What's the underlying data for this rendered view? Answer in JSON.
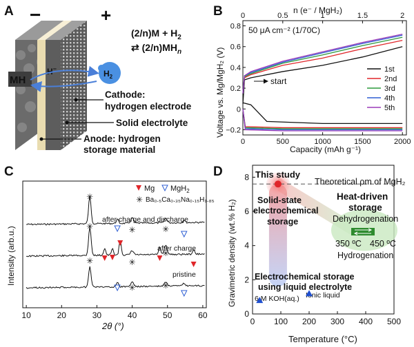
{
  "panels": {
    "A": {
      "letter": "A",
      "minus": "−",
      "plus": "+",
      "reaction_line1": "(2/n)M + H",
      "reaction_line1_sub": "2",
      "reaction_line2": "⇄ (2/n)MH",
      "reaction_line2_sub": "n",
      "mh_label": "MH",
      "h_minus": "H",
      "h_minus_sup": "−",
      "h2_label": "H",
      "h2_sub": "2",
      "cathode_line1": "Cathode:",
      "cathode_line2": "hydrogen electrode",
      "electrolyte": "Solid electrolyte",
      "anode_line1": "Anode: hydrogen",
      "anode_line2": "storage material"
    },
    "B": {
      "letter": "B",
      "top_axis_label": "n (e⁻ / MgH₂)",
      "top_ticks": [
        "0",
        "0.5",
        "1",
        "1.5",
        "2"
      ],
      "y_axis_label": "Voltage vs. Mg/MgH₂ (V)",
      "y_ticks": [
        "−0.2",
        "0",
        "0.2",
        "0.4",
        "0.6",
        "0.8"
      ],
      "x_axis_label": "Capacity (mAh g⁻¹)",
      "x_ticks": [
        "0",
        "500",
        "1000",
        "1500",
        "2000"
      ],
      "condition": "50 μA cm⁻² (1/70C)",
      "start_label": "start",
      "legend": [
        {
          "label": "1st",
          "color": "#111111"
        },
        {
          "label": "2nd",
          "color": "#e0262a"
        },
        {
          "label": "3rd",
          "color": "#2c9a3c"
        },
        {
          "label": "4th",
          "color": "#2f5fd3"
        },
        {
          "label": "5th",
          "color": "#9b3ab8"
        }
      ]
    },
    "C": {
      "letter": "C",
      "y_axis_label": "Intensity (arb.u.)",
      "x_axis_label": "2θ (°)",
      "x_ticks": [
        "10",
        "20",
        "30",
        "40",
        "50",
        "60"
      ],
      "legend_mg": "Mg",
      "legend_mgh2": "MgH",
      "legend_mgh2_sub": "2",
      "legend_ba": "Ba₀.₅Ca₀.₃₅Na₀.₁₅H₁.₈₅",
      "trace_labels": [
        "after charge and discharge",
        "after charge",
        "pristine"
      ],
      "colors": {
        "mg": "#e0262a",
        "mgh2": "#2f5fd3"
      }
    },
    "D": {
      "letter": "D",
      "y_axis_label": "Gravimetric density (wt.% H₂)",
      "x_axis_label": "Temperature (°C)",
      "y_ticks": [
        "0",
        "2",
        "4",
        "6",
        "8"
      ],
      "x_ticks": [
        "0",
        "100",
        "200",
        "300",
        "400",
        "500"
      ],
      "theoretical_label": "Theoretical ρm of MgH₂",
      "this_study": "This study",
      "solid_state_line1": "Solid-state",
      "solid_state_line2": "electrochemical",
      "solid_state_line3": "storage",
      "heat_line1": "Heat-driven",
      "heat_line2": "storage",
      "dehydrogenation": "Dehydrogenation",
      "temp_350": "350 ºC",
      "temp_450": "450 ºC",
      "hydrogenation": "Hydrogenation",
      "liquid_line1": "Electrochemical storage",
      "liquid_line2": "using liquid electrolyte",
      "koh_label": "6 M KOH(aq.)",
      "ionic_label": "Ionic liquid",
      "colors": {
        "red": "#e0262a",
        "green": "#2e8b2e",
        "blue": "#1f4fd0"
      }
    }
  },
  "chart_data": [
    {
      "panel": "B",
      "type": "line",
      "x_unit": "mAh g⁻¹",
      "xlim": [
        0,
        2050
      ],
      "ylim": [
        -0.25,
        0.85
      ],
      "series": [
        {
          "name": "1st",
          "charge": [
            [
              0,
              0.05
            ],
            [
              20,
              0.28
            ],
            [
              100,
              0.3
            ],
            [
              500,
              0.36
            ],
            [
              1000,
              0.42
            ],
            [
              1500,
              0.5
            ],
            [
              2000,
              0.6
            ]
          ],
          "discharge": [
            [
              0,
              0.06
            ],
            [
              100,
              0.04
            ],
            [
              300,
              -0.12
            ],
            [
              1000,
              -0.14
            ],
            [
              2000,
              -0.14
            ]
          ]
        },
        {
          "name": "2nd",
          "charge": [
            [
              0,
              0.15
            ],
            [
              20,
              0.3
            ],
            [
              100,
              0.33
            ],
            [
              500,
              0.42
            ],
            [
              1000,
              0.49
            ],
            [
              1500,
              0.58
            ],
            [
              2000,
              0.66
            ]
          ],
          "discharge": [
            [
              0,
              0.0
            ],
            [
              30,
              -0.17
            ],
            [
              500,
              -0.18
            ],
            [
              2000,
              -0.18
            ]
          ]
        },
        {
          "name": "3rd",
          "charge": [
            [
              0,
              0.15
            ],
            [
              20,
              0.31
            ],
            [
              100,
              0.34
            ],
            [
              500,
              0.44
            ],
            [
              1000,
              0.52
            ],
            [
              1500,
              0.61
            ],
            [
              2000,
              0.69
            ]
          ],
          "discharge": [
            [
              0,
              0.0
            ],
            [
              30,
              -0.18
            ],
            [
              500,
              -0.19
            ],
            [
              2000,
              -0.19
            ]
          ]
        },
        {
          "name": "4th",
          "charge": [
            [
              0,
              0.15
            ],
            [
              20,
              0.32
            ],
            [
              100,
              0.35
            ],
            [
              500,
              0.45
            ],
            [
              1000,
              0.54
            ],
            [
              1500,
              0.63
            ],
            [
              2000,
              0.71
            ]
          ],
          "discharge": [
            [
              0,
              0.0
            ],
            [
              30,
              -0.19
            ],
            [
              500,
              -0.2
            ],
            [
              2000,
              -0.2
            ]
          ]
        },
        {
          "name": "5th",
          "charge": [
            [
              0,
              0.15
            ],
            [
              20,
              0.32
            ],
            [
              100,
              0.36
            ],
            [
              500,
              0.46
            ],
            [
              1000,
              0.55
            ],
            [
              1500,
              0.64
            ],
            [
              2000,
              0.72
            ]
          ],
          "discharge": [
            [
              0,
              0.0
            ],
            [
              30,
              -0.2
            ],
            [
              500,
              -0.21
            ],
            [
              2000,
              -0.21
            ]
          ]
        }
      ]
    },
    {
      "panel": "D",
      "type": "scatter",
      "xlim": [
        0,
        500
      ],
      "ylim": [
        0,
        8.7
      ],
      "theoretical_line": 7.6,
      "points": [
        {
          "label": "This study",
          "x": 90,
          "y": 7.6,
          "marker": "circle"
        },
        {
          "label": "6 M KOH(aq.)",
          "x": 25,
          "y": 0.8,
          "marker": "triangle"
        },
        {
          "label": "Ionic liquid",
          "x": 200,
          "y": 1.2,
          "marker": "triangle"
        },
        {
          "label": "350 ºC",
          "x": 350,
          "y": 0,
          "marker": "none"
        },
        {
          "label": "450 ºC",
          "x": 450,
          "y": 0,
          "marker": "none"
        }
      ]
    }
  ]
}
